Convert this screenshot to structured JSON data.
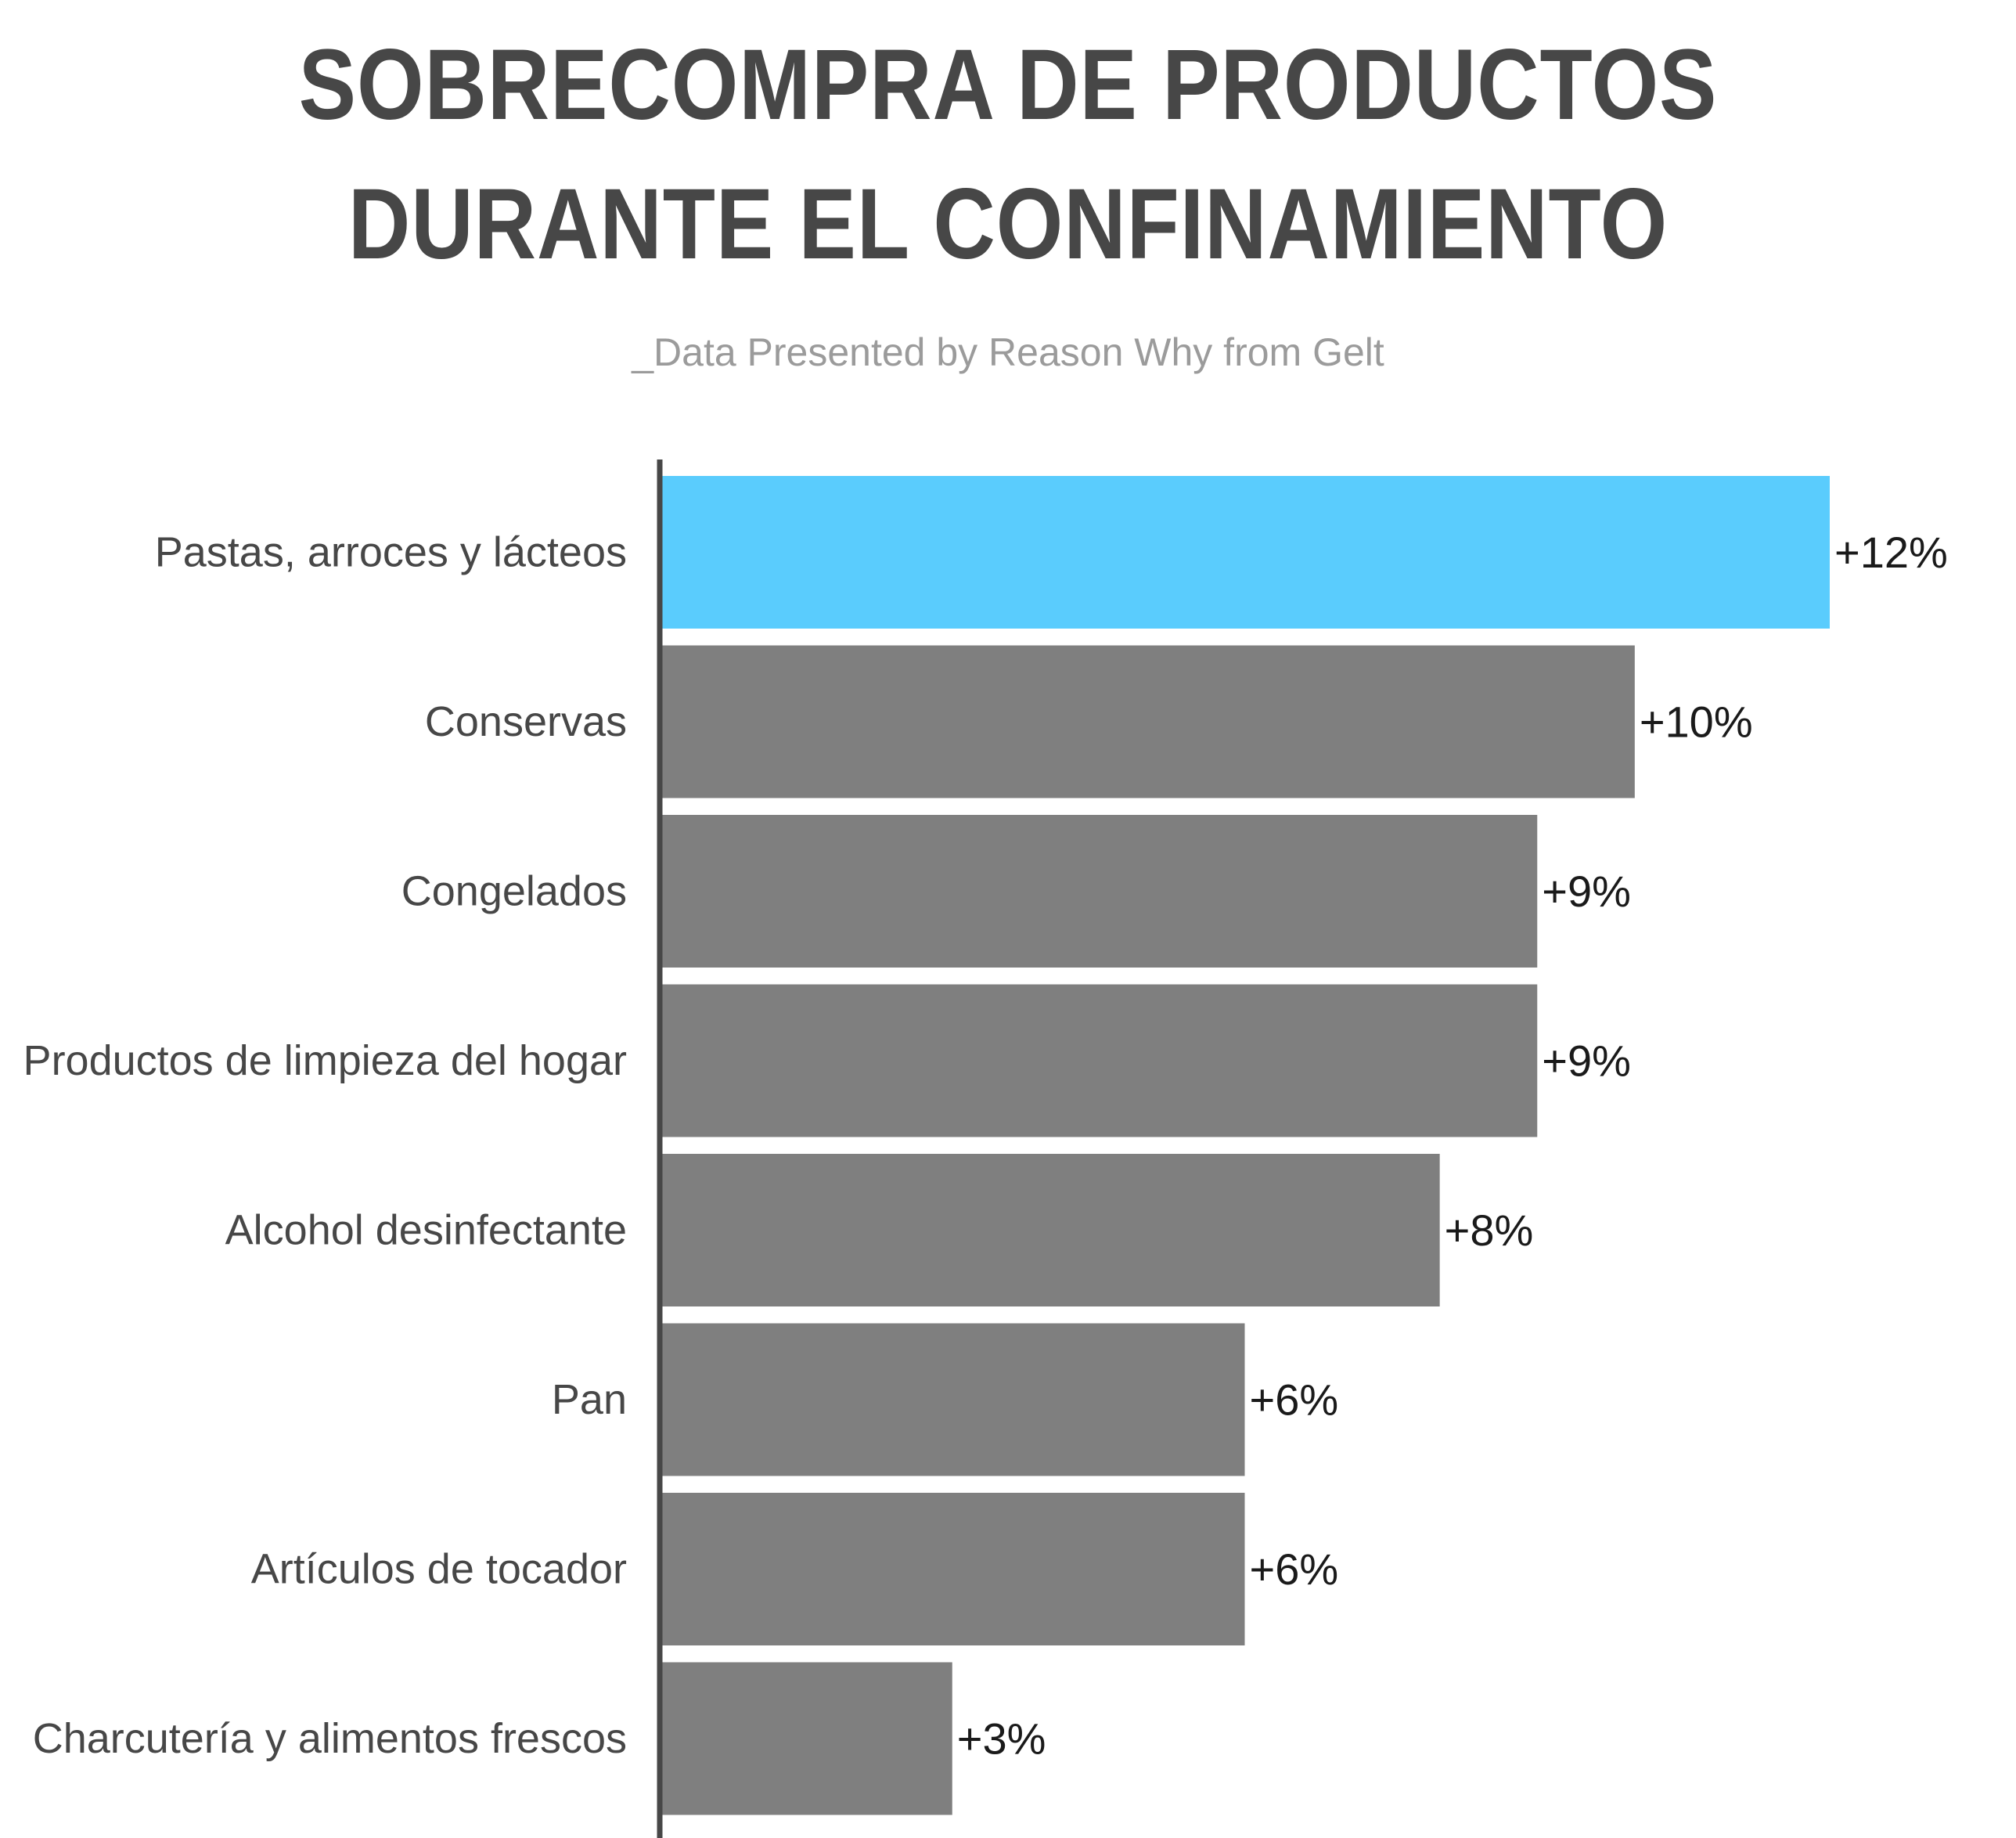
{
  "chart_data": {
    "type": "bar",
    "orientation": "horizontal",
    "title_lines": [
      "SOBRECOMPRA DE PRODUCTOS",
      "DURANTE EL CONFINAMIENTO"
    ],
    "subtitle": "_Data Presented by Reason Why from Gelt",
    "categories": [
      "Pastas, arroces y lácteos",
      "Conservas",
      "Congelados",
      "Productos de limpieza del hogar",
      "Alcohol desinfectante",
      "Pan",
      "Artículos de tocador",
      "Charcutería y alimentos frescos"
    ],
    "values": [
      12,
      10,
      9,
      9,
      8,
      6,
      6,
      3
    ],
    "value_labels": [
      "+12%",
      "+10%",
      "+9%",
      "+9%",
      "+8%",
      "+6%",
      "+6%",
      "+3%"
    ],
    "xlim": [
      0,
      12
    ],
    "grid": false,
    "legend": "none",
    "colors": {
      "highlight": "#5accfd",
      "default": "#7f7f7f",
      "axis": "#474747"
    },
    "highlight_index": 0
  }
}
